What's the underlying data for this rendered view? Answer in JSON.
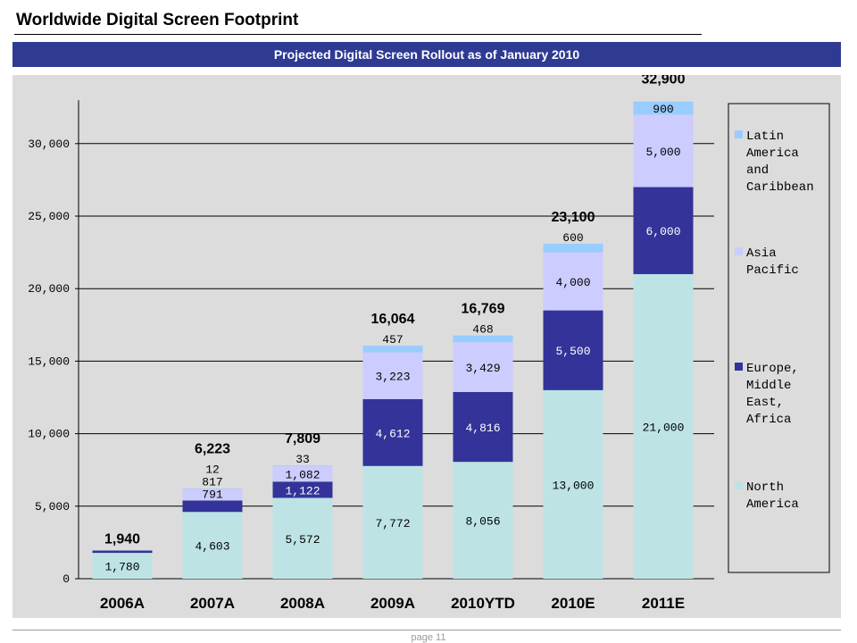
{
  "slide": {
    "title": "Worldwide Digital Screen Footprint",
    "banner": "Projected Digital Screen Rollout as of January 2010",
    "page_number": "page 11"
  },
  "colors": {
    "banner": "#2f3a93",
    "panel": "#dcdcdc",
    "North America": "#bde3e5",
    "Europe, Middle East, Africa": "#333399",
    "Asia Pacific": "#ccccff",
    "Latin America and Caribbean": "#99ccff"
  },
  "chart_data": {
    "type": "bar",
    "stacked": true,
    "title": "Projected Digital Screen Rollout as of January 2010",
    "xlabel": "",
    "ylabel": "",
    "ylim": [
      0,
      33000
    ],
    "yticks": [
      0,
      5000,
      10000,
      15000,
      20000,
      25000,
      30000
    ],
    "ytick_labels": [
      "0",
      "5,000",
      "10,000",
      "15,000",
      "20,000",
      "25,000",
      "30,000"
    ],
    "grid": true,
    "legend_position": "right",
    "categories": [
      "2006A",
      "2007A",
      "2008A",
      "2009A",
      "2010YTD",
      "2010E",
      "2011E"
    ],
    "series": [
      {
        "name": "North America",
        "values": [
          1780,
          4603,
          5572,
          7772,
          8056,
          13000,
          21000
        ],
        "labels": [
          "1,780",
          "4,603",
          "5,572",
          "7,772",
          "8,056",
          "13,000",
          "21,000"
        ]
      },
      {
        "name": "Europe, Middle East, Africa",
        "values": [
          160,
          791,
          1122,
          4612,
          4816,
          5500,
          6000
        ],
        "labels": [
          "",
          "791",
          "1,122",
          "4,612",
          "4,816",
          "5,500",
          "6,000"
        ]
      },
      {
        "name": "Asia Pacific",
        "values": [
          0,
          817,
          1082,
          3223,
          3429,
          4000,
          5000
        ],
        "labels": [
          "",
          "817",
          "1,082",
          "3,223",
          "3,429",
          "4,000",
          "5,000"
        ]
      },
      {
        "name": "Latin America and Caribbean",
        "values": [
          0,
          12,
          33,
          457,
          468,
          600,
          900
        ],
        "labels": [
          "",
          "12",
          "33",
          "457",
          "468",
          "600",
          "900"
        ]
      }
    ],
    "totals": [
      1940,
      6223,
      7809,
      16064,
      16769,
      23100,
      32900
    ],
    "total_labels": [
      "1,940",
      "6,223",
      "7,809",
      "16,064",
      "16,769",
      "23,100",
      "32,900"
    ],
    "legend": [
      {
        "series": "Latin America and Caribbean",
        "lines": [
          "Latin",
          "America",
          "and",
          "Caribbean"
        ]
      },
      {
        "series": "Asia Pacific",
        "lines": [
          "Asia",
          "Pacific"
        ]
      },
      {
        "series": "Europe, Middle East, Africa",
        "lines": [
          "Europe,",
          "Middle",
          "East,",
          "Africa"
        ]
      },
      {
        "series": "North America",
        "lines": [
          "North",
          "America"
        ]
      }
    ]
  }
}
